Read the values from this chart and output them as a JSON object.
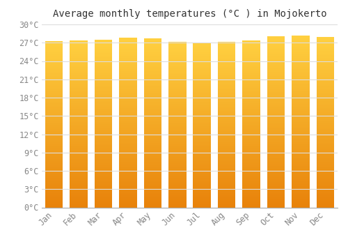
{
  "title": "Average monthly temperatures (°C ) in Mojokerto",
  "months": [
    "Jan",
    "Feb",
    "Mar",
    "Apr",
    "May",
    "Jun",
    "Jul",
    "Aug",
    "Sep",
    "Oct",
    "Nov",
    "Dec"
  ],
  "temperatures": [
    27.3,
    27.4,
    27.5,
    27.8,
    27.7,
    27.2,
    27.0,
    27.1,
    27.4,
    28.1,
    28.2,
    27.9
  ],
  "ylim": [
    0,
    30
  ],
  "yticks": [
    0,
    3,
    6,
    9,
    12,
    15,
    18,
    21,
    24,
    27,
    30
  ],
  "bar_color_bottom": "#E8820A",
  "bar_color_top": "#FFD040",
  "background_color": "#FFFFFF",
  "grid_color": "#DDDDDD",
  "title_fontsize": 10,
  "tick_fontsize": 8.5,
  "title_color": "#333333",
  "tick_color": "#888888",
  "bar_width": 0.72
}
